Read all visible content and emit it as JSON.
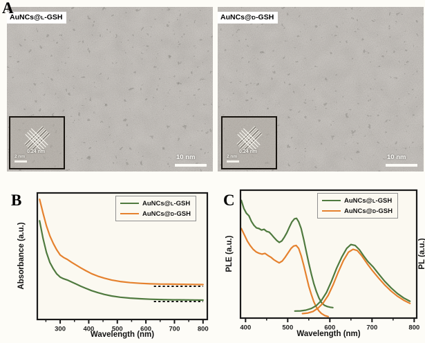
{
  "panels": {
    "a": {
      "label": "A",
      "images": [
        {
          "title": "AuNCs@L-GSH",
          "scale_label": "10 nm",
          "inset": {
            "d_spacing": "0.24 nm",
            "scale_label": "2 nm"
          }
        },
        {
          "title": "AuNCs@D-GSH",
          "scale_label": "10 nm",
          "inset": {
            "d_spacing": "0.24 nm",
            "scale_label": "2 nm"
          }
        }
      ]
    },
    "b": {
      "label": "B"
    },
    "c": {
      "label": "C"
    }
  },
  "colors": {
    "green": "#4f7a3f",
    "orange": "#e5812e",
    "axis": "#1a1a1a",
    "plot_bg": "#fbf9f1",
    "dash": "#111111"
  },
  "chart_data": [
    {
      "panel": "B",
      "type": "line",
      "title": "",
      "xlabel": "Wavelength (nm)",
      "ylabel": "Absorbance (a.u.)",
      "xlim": [
        220,
        815
      ],
      "xticks": [
        300,
        400,
        500,
        600,
        700,
        800
      ],
      "y_units": "arbitrary units (y given as fraction of axis height)",
      "grid": false,
      "legend_position": "top-right",
      "axis_color": "#1a1a1a",
      "plot_bg": "#fbf9f1",
      "legend": [
        "AuNCs@L-GSH",
        "AuNCs@D-GSH"
      ],
      "series": [
        {
          "name": "AuNCs@L-GSH",
          "role": "absorbance",
          "color": "#4f7a3f",
          "x": [
            228,
            240,
            252,
            264,
            276,
            288,
            300,
            312,
            325,
            340,
            356,
            372,
            390,
            410,
            432,
            455,
            480,
            510,
            545,
            580,
            615,
            650,
            690,
            730,
            770,
            800
          ],
          "y": [
            0.78,
            0.64,
            0.53,
            0.45,
            0.4,
            0.36,
            0.335,
            0.322,
            0.312,
            0.296,
            0.28,
            0.263,
            0.246,
            0.228,
            0.212,
            0.198,
            0.186,
            0.176,
            0.169,
            0.164,
            0.16,
            0.158,
            0.156,
            0.155,
            0.154,
            0.153
          ]
        },
        {
          "name": "AuNCs@D-GSH",
          "role": "absorbance",
          "color": "#e5812e",
          "x": [
            228,
            240,
            252,
            264,
            276,
            288,
            300,
            312,
            325,
            340,
            356,
            372,
            390,
            410,
            432,
            455,
            480,
            510,
            545,
            580,
            615,
            650,
            690,
            730,
            770,
            800
          ],
          "y": [
            0.95,
            0.84,
            0.74,
            0.66,
            0.6,
            0.55,
            0.51,
            0.49,
            0.475,
            0.452,
            0.43,
            0.408,
            0.385,
            0.362,
            0.342,
            0.326,
            0.312,
            0.3,
            0.291,
            0.286,
            0.282,
            0.28,
            0.279,
            0.278,
            0.277,
            0.276
          ]
        }
      ],
      "annotations": [
        {
          "type": "dashed-line",
          "x1": 628,
          "x2": 800,
          "y": 0.262,
          "color": "#111111",
          "note": "baseline under AuNCs@D-GSH curve"
        },
        {
          "type": "dashed-line",
          "x1": 628,
          "x2": 800,
          "y": 0.142,
          "color": "#111111",
          "note": "baseline under AuNCs@L-GSH curve"
        }
      ]
    },
    {
      "panel": "C",
      "type": "line",
      "title": "",
      "xlabel": "Wavelength (nm)",
      "ylabel": "PLE (a.u.)",
      "ylabel_right": "PL (a.u.)",
      "xlim": [
        388,
        806
      ],
      "xticks": [
        400,
        500,
        600,
        700,
        800
      ],
      "y_units": "arbitrary units (y given as fraction of axis height)",
      "grid": false,
      "legend_position": "top-right",
      "axis_color": "#1a1a1a",
      "plot_bg": "#fbf9f1",
      "legend": [
        "AuNCs@L-GSH",
        "AuNCs@D-GSH"
      ],
      "series": [
        {
          "name": "AuNCs@L-GSH",
          "role": "PLE",
          "color": "#4f7a3f",
          "x": [
            390,
            396,
            402,
            408,
            414,
            420,
            426,
            432,
            438,
            444,
            450,
            456,
            462,
            468,
            474,
            480,
            486,
            492,
            498,
            504,
            510,
            516,
            521,
            526,
            532,
            538,
            544,
            550,
            556,
            562,
            568,
            574,
            580,
            587,
            594,
            601,
            607
          ],
          "y": [
            0.92,
            0.857,
            0.82,
            0.8,
            0.755,
            0.725,
            0.705,
            0.7,
            0.688,
            0.694,
            0.678,
            0.672,
            0.652,
            0.628,
            0.607,
            0.592,
            0.603,
            0.632,
            0.667,
            0.712,
            0.752,
            0.776,
            0.78,
            0.753,
            0.7,
            0.615,
            0.52,
            0.43,
            0.345,
            0.27,
            0.208,
            0.158,
            0.122,
            0.1,
            0.09,
            0.085,
            0.082
          ]
        },
        {
          "name": "AuNCs@D-GSH",
          "role": "PLE",
          "color": "#e5812e",
          "x": [
            390,
            397,
            404,
            411,
            418,
            425,
            432,
            439,
            446,
            453,
            460,
            467,
            474,
            480,
            487,
            494,
            501,
            508,
            514,
            520,
            526,
            532,
            538,
            544,
            550,
            556,
            562,
            568,
            574,
            580,
            588,
            596
          ],
          "y": [
            0.7,
            0.652,
            0.603,
            0.567,
            0.538,
            0.518,
            0.507,
            0.5,
            0.506,
            0.49,
            0.476,
            0.457,
            0.442,
            0.432,
            0.446,
            0.476,
            0.51,
            0.545,
            0.563,
            0.568,
            0.545,
            0.488,
            0.413,
            0.33,
            0.25,
            0.185,
            0.128,
            0.086,
            0.056,
            0.036,
            0.02,
            0.012
          ]
        },
        {
          "name": "AuNCs@L-GSH",
          "role": "PL",
          "color": "#4f7a3f",
          "x": [
            517,
            530,
            543,
            556,
            568,
            580,
            592,
            604,
            616,
            628,
            640,
            650,
            660,
            670,
            680,
            690,
            702,
            715,
            730,
            745,
            760,
            775,
            790
          ],
          "y": [
            0.055,
            0.056,
            0.062,
            0.075,
            0.098,
            0.138,
            0.2,
            0.29,
            0.39,
            0.475,
            0.545,
            0.575,
            0.568,
            0.535,
            0.487,
            0.443,
            0.402,
            0.348,
            0.288,
            0.237,
            0.193,
            0.158,
            0.132
          ]
        },
        {
          "name": "AuNCs@D-GSH",
          "role": "PL",
          "color": "#e5812e",
          "x": [
            535,
            548,
            560,
            572,
            584,
            596,
            608,
            620,
            632,
            644,
            655,
            665,
            675,
            688,
            700,
            715,
            730,
            745,
            760,
            775,
            790
          ],
          "y": [
            0.035,
            0.04,
            0.052,
            0.078,
            0.118,
            0.178,
            0.262,
            0.36,
            0.45,
            0.515,
            0.538,
            0.528,
            0.49,
            0.428,
            0.375,
            0.315,
            0.26,
            0.212,
            0.172,
            0.14,
            0.115
          ]
        }
      ],
      "annotations": []
    }
  ]
}
